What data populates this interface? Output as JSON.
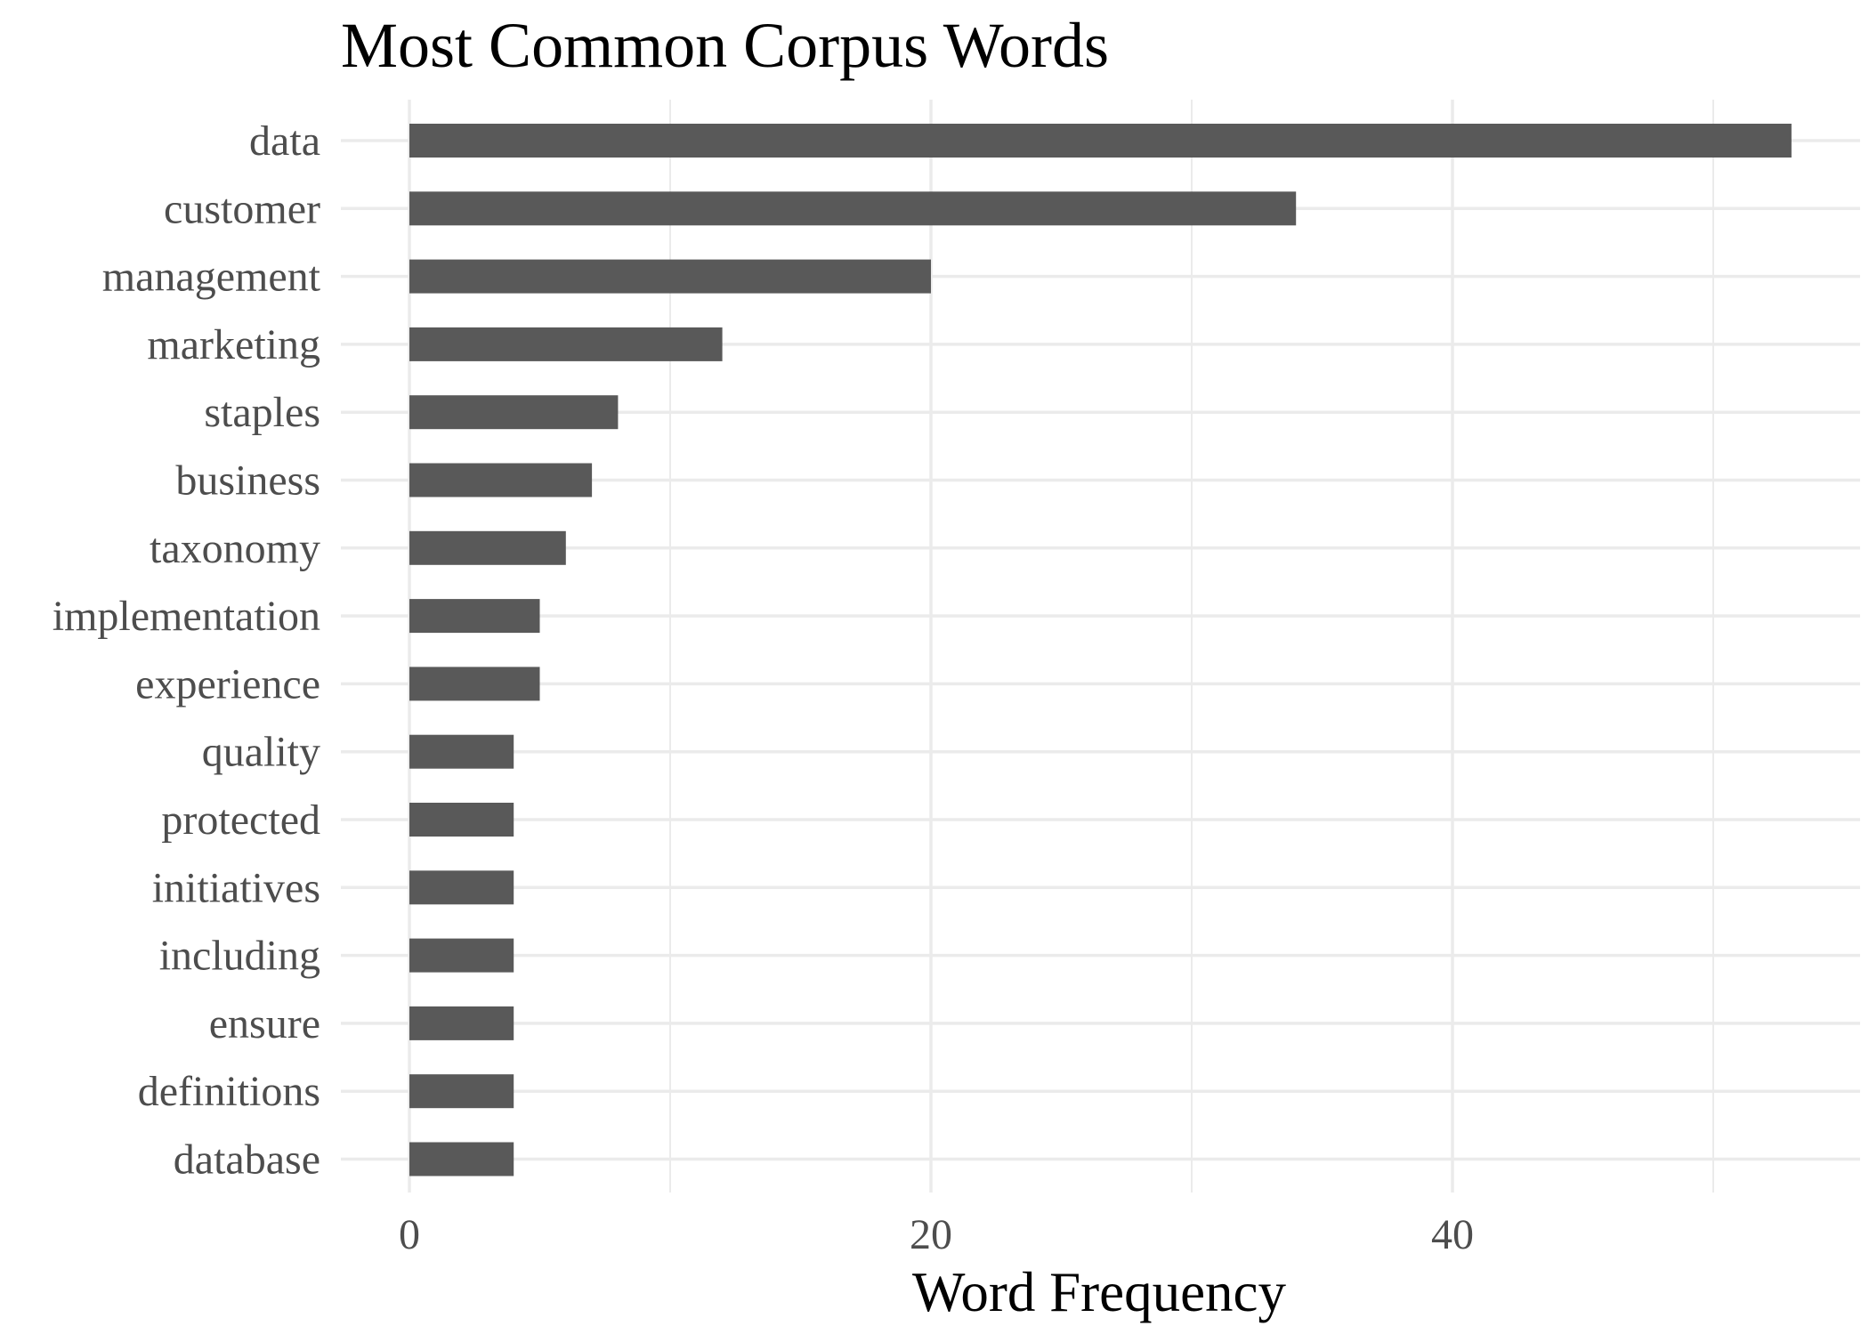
{
  "chart_data": {
    "type": "bar",
    "orientation": "horizontal",
    "title": "Most Common Corpus Words",
    "xlabel": "Word Frequency",
    "ylabel": "",
    "categories": [
      "data",
      "customer",
      "management",
      "marketing",
      "staples",
      "business",
      "taxonomy",
      "implementation",
      "experience",
      "quality",
      "protected",
      "initiatives",
      "including",
      "ensure",
      "definitions",
      "database"
    ],
    "values": [
      53,
      34,
      20,
      12,
      8,
      7,
      6,
      5,
      5,
      4,
      4,
      4,
      4,
      4,
      4,
      4
    ],
    "xlim": [
      -2.6,
      55.7
    ],
    "x_ticks": [
      0,
      20,
      40
    ],
    "x_tick_labels": [
      "0",
      "20",
      "40"
    ],
    "x_minor_ticks": [
      10,
      30,
      50
    ],
    "grid": true,
    "bar_color": "#595959",
    "grid_color": "#ebebeb"
  }
}
